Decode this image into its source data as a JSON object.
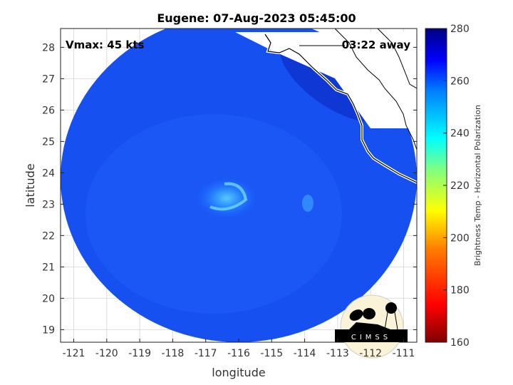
{
  "title": "Eugene: 07-Aug-2023 05:45:00",
  "vmax_label": "Vmax: 45 kts",
  "time_away_label": "03:22 away",
  "xlabel": "longitude",
  "ylabel": "latitude",
  "colorbar_label": "Brightness Temp - Horizontal Polarization",
  "logo_text": "CIMSS",
  "x_ticks": [
    "-121",
    "-120",
    "-119",
    "-118",
    "-117",
    "-116",
    "-115",
    "-114",
    "-113",
    "-112",
    "-111"
  ],
  "y_ticks": [
    "28",
    "27",
    "26",
    "25",
    "24",
    "23",
    "22",
    "21",
    "20",
    "19"
  ],
  "colorbar_ticks": [
    "280",
    "260",
    "240",
    "220",
    "200",
    "180",
    "160"
  ],
  "chart_data": {
    "type": "heatmap",
    "title": "Eugene: 07-Aug-2023 05:45:00",
    "xlabel": "longitude",
    "ylabel": "latitude",
    "xlim": [
      -121.4,
      -110.6
    ],
    "ylim": [
      18.6,
      28.6
    ],
    "colorbar_range": [
      160,
      280
    ],
    "colorbar_label": "Brightness Temp - Horizontal Polarization",
    "storm_center": {
      "lon": -116.2,
      "lat": 23.3
    },
    "grid": true
  }
}
